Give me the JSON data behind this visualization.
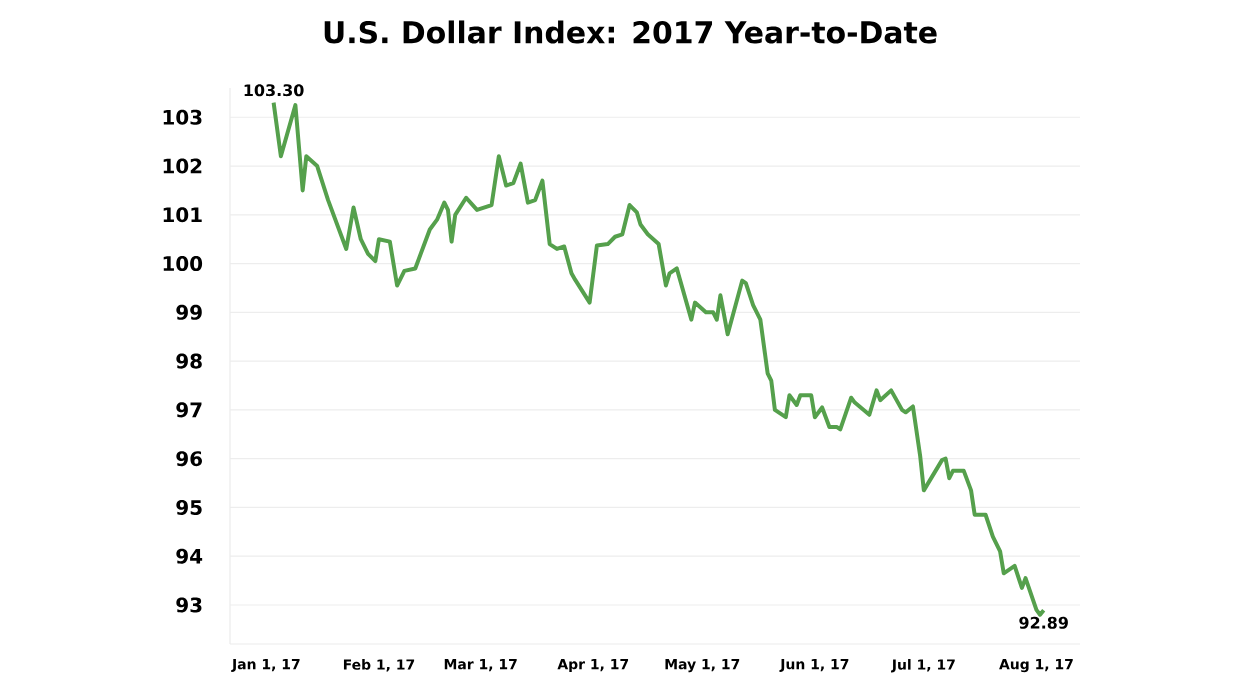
{
  "chart_data": {
    "type": "line",
    "title": "U.S. Dollar Index: 2017 Year-to-Date",
    "x": [
      "2017-01-03",
      "2017-01-05",
      "2017-01-09",
      "2017-01-11",
      "2017-01-12",
      "2017-01-15",
      "2017-01-18",
      "2017-01-23",
      "2017-01-25",
      "2017-01-27",
      "2017-01-29",
      "2017-01-31",
      "2017-02-01",
      "2017-02-04",
      "2017-02-06",
      "2017-02-08",
      "2017-02-11",
      "2017-02-13",
      "2017-02-15",
      "2017-02-17",
      "2017-02-19",
      "2017-02-20",
      "2017-02-21",
      "2017-02-22",
      "2017-02-25",
      "2017-02-28",
      "2017-03-04",
      "2017-03-06",
      "2017-03-08",
      "2017-03-10",
      "2017-03-12",
      "2017-03-14",
      "2017-03-16",
      "2017-03-18",
      "2017-03-20",
      "2017-03-22",
      "2017-03-24",
      "2017-03-26",
      "2017-03-27",
      "2017-03-31",
      "2017-04-02",
      "2017-04-05",
      "2017-04-07",
      "2017-04-09",
      "2017-04-11",
      "2017-04-13",
      "2017-04-14",
      "2017-04-16",
      "2017-04-19",
      "2017-04-21",
      "2017-04-22",
      "2017-04-24",
      "2017-04-28",
      "2017-04-29",
      "2017-05-02",
      "2017-05-04",
      "2017-05-05",
      "2017-05-06",
      "2017-05-08",
      "2017-05-12",
      "2017-05-13",
      "2017-05-15",
      "2017-05-17",
      "2017-05-19",
      "2017-05-20",
      "2017-05-21",
      "2017-05-24",
      "2017-05-25",
      "2017-05-27",
      "2017-05-28",
      "2017-05-31",
      "2017-06-01",
      "2017-06-03",
      "2017-06-05",
      "2017-06-07",
      "2017-06-08",
      "2017-06-11",
      "2017-06-12",
      "2017-06-16",
      "2017-06-18",
      "2017-06-19",
      "2017-06-22",
      "2017-06-25",
      "2017-06-26",
      "2017-06-28",
      "2017-06-30",
      "2017-07-01",
      "2017-07-06",
      "2017-07-07",
      "2017-07-08",
      "2017-07-09",
      "2017-07-12",
      "2017-07-14",
      "2017-07-15",
      "2017-07-18",
      "2017-07-20",
      "2017-07-22",
      "2017-07-23",
      "2017-07-26",
      "2017-07-28",
      "2017-07-29",
      "2017-08-01",
      "2017-08-02",
      "2017-08-03"
    ],
    "series": [
      {
        "color": "#55a04c",
        "values": [
          103.3,
          102.2,
          103.25,
          101.5,
          102.2,
          102.0,
          101.3,
          100.3,
          101.15,
          100.5,
          100.2,
          100.05,
          100.5,
          100.45,
          99.55,
          99.85,
          99.9,
          100.3,
          100.7,
          100.9,
          101.25,
          101.1,
          100.45,
          101.0,
          101.35,
          101.1,
          101.2,
          102.2,
          101.6,
          101.65,
          102.05,
          101.25,
          101.3,
          101.7,
          100.4,
          100.3,
          100.35,
          99.8,
          99.67,
          99.2,
          100.37,
          100.4,
          100.55,
          100.6,
          101.2,
          101.05,
          100.8,
          100.6,
          100.4,
          99.55,
          99.8,
          99.9,
          98.85,
          99.2,
          99.0,
          99.0,
          98.85,
          99.35,
          98.55,
          99.65,
          99.6,
          99.15,
          98.85,
          97.75,
          97.6,
          97.0,
          96.85,
          97.3,
          97.1,
          97.3,
          97.3,
          96.85,
          97.05,
          96.65,
          96.65,
          96.6,
          97.25,
          97.15,
          96.9,
          97.4,
          97.2,
          97.4,
          97.0,
          96.95,
          97.07,
          96.05,
          95.35,
          95.97,
          96.0,
          95.6,
          95.75,
          95.75,
          95.35,
          94.85,
          94.85,
          94.4,
          94.1,
          93.65,
          93.8,
          93.35,
          93.55,
          92.9,
          92.8,
          92.89
        ]
      }
    ],
    "xlim": [
      "2016-12-22",
      "2017-08-13"
    ],
    "xticks": [
      {
        "value": "2017-01-01",
        "label": "Jan 1, 17"
      },
      {
        "value": "2017-02-01",
        "label": "Feb 1, 17"
      },
      {
        "value": "2017-03-01",
        "label": "Mar 1, 17"
      },
      {
        "value": "2017-04-01",
        "label": "Apr 1, 17"
      },
      {
        "value": "2017-05-01",
        "label": "May 1, 17"
      },
      {
        "value": "2017-06-01",
        "label": "Jun 1, 17"
      },
      {
        "value": "2017-07-01",
        "label": "Jul 1, 17"
      },
      {
        "value": "2017-08-01",
        "label": "Aug 1, 17"
      }
    ],
    "ylim": [
      92.2,
      103.6
    ],
    "yticks": [
      93,
      94,
      95,
      96,
      97,
      98,
      99,
      100,
      101,
      102,
      103
    ],
    "grid": "y",
    "legend": false,
    "marker": "none",
    "line_style": "solid",
    "annotations": [
      {
        "text": "103.30",
        "x": "2017-01-03",
        "y": 103.3
      },
      {
        "text": "92.89",
        "x": "2017-08-03",
        "y": 92.89
      }
    ]
  }
}
